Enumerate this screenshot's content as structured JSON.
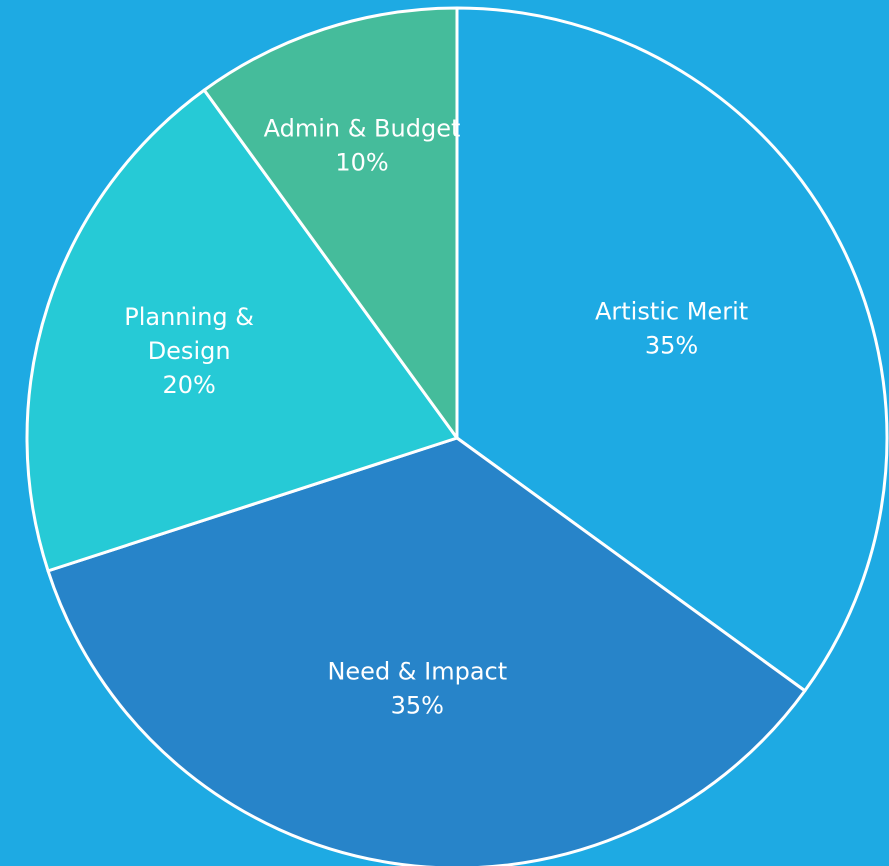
{
  "chart_data": {
    "type": "pie",
    "start_angle_deg": 0,
    "direction": "clockwise",
    "slices": [
      {
        "label_lines": [
          "Artistic Merit"
        ],
        "value_label": "35%",
        "value": 35,
        "color": "#1eaae3"
      },
      {
        "label_lines": [
          "Need & Impact"
        ],
        "value_label": "35%",
        "value": 35,
        "color": "#2784c9"
      },
      {
        "label_lines": [
          "Planning &",
          "Design"
        ],
        "value_label": "20%",
        "value": 20,
        "color": "#26cad6"
      },
      {
        "label_lines": [
          "Admin & Budget"
        ],
        "value_label": "10%",
        "value": 10,
        "color": "#45bc9b"
      }
    ]
  },
  "colors": {
    "background": "#1eaae3",
    "slice_border": "#ffffff",
    "label_text": "#ffffff"
  }
}
